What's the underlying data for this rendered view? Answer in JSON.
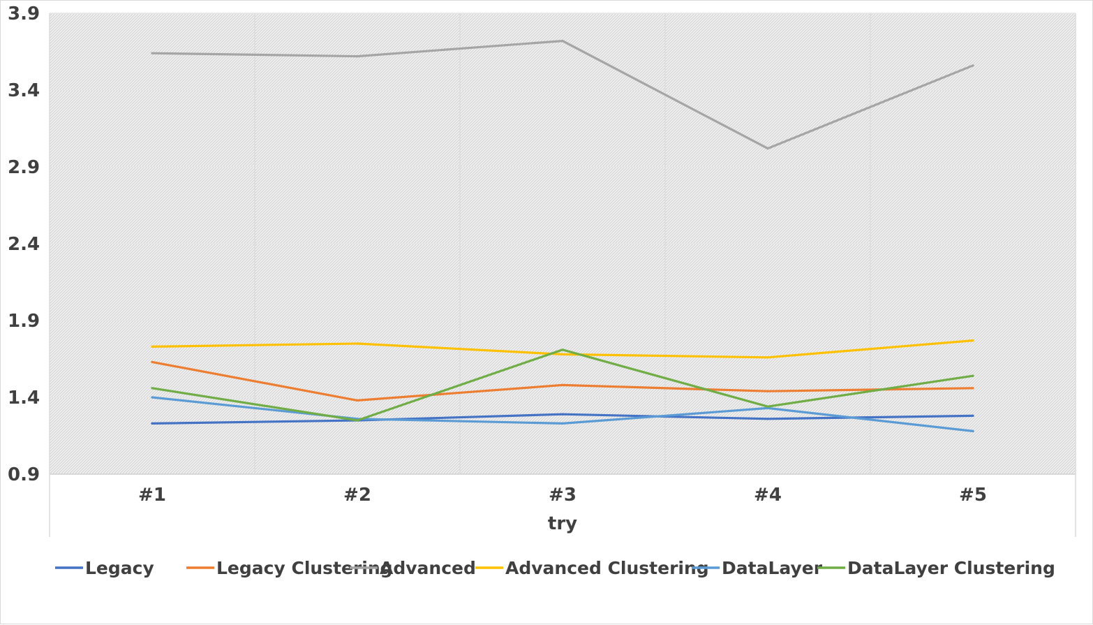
{
  "chart_data": {
    "type": "line",
    "title": "",
    "xlabel": "try",
    "ylabel": "",
    "categories": [
      "#1",
      "#2",
      "#3",
      "#4",
      "#5"
    ],
    "ylim": [
      0.9,
      3.9
    ],
    "yticks": [
      0.9,
      1.4,
      1.9,
      2.4,
      2.9,
      3.4,
      3.9
    ],
    "ytick_labels": [
      "0.9",
      "1.4",
      "1.9",
      "2.4",
      "2.9",
      "3.4",
      "3.9"
    ],
    "grid": true,
    "plot_background": "hatched light gray",
    "legend_position": "bottom",
    "series": [
      {
        "name": "Legacy",
        "color": "#4472C4",
        "values": [
          1.23,
          1.25,
          1.29,
          1.26,
          1.28
        ]
      },
      {
        "name": "Legacy Clustering",
        "color": "#ED7D31",
        "values": [
          1.63,
          1.38,
          1.48,
          1.44,
          1.46
        ]
      },
      {
        "name": "Advanced",
        "color": "#A5A5A5",
        "values": [
          3.64,
          3.62,
          3.72,
          3.02,
          3.56
        ]
      },
      {
        "name": "Advanced Clustering",
        "color": "#FFC000",
        "values": [
          1.73,
          1.75,
          1.68,
          1.66,
          1.77
        ]
      },
      {
        "name": "DataLayer",
        "color": "#5B9BD5",
        "values": [
          1.4,
          1.26,
          1.23,
          1.33,
          1.18
        ]
      },
      {
        "name": "DataLayer Clustering",
        "color": "#70AD47",
        "values": [
          1.46,
          1.25,
          1.71,
          1.34,
          1.54
        ]
      }
    ]
  }
}
